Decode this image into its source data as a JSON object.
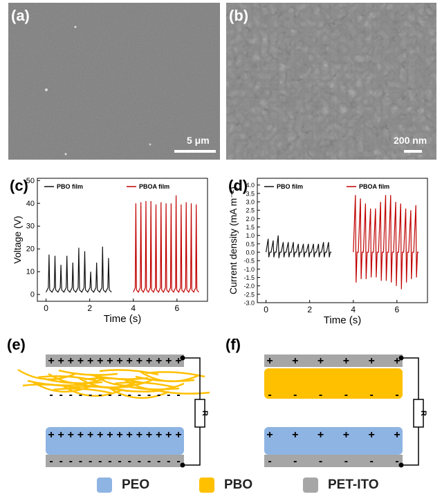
{
  "panels": {
    "a": {
      "label": "(a)",
      "scale": "5 μm"
    },
    "b": {
      "label": "(b)",
      "scale": "200 nm"
    },
    "c": {
      "label": "(c)"
    },
    "d": {
      "label": "(d)"
    },
    "e": {
      "label": "(e)"
    },
    "f": {
      "label": "(f)"
    }
  },
  "chart_data": [
    {
      "type": "line",
      "panel": "c",
      "xlabel": "Time (s)",
      "ylabel": "Voltage (V)",
      "xlim": [
        -0.4,
        7.4
      ],
      "ylim": [
        -3,
        51
      ],
      "xticks": [
        0,
        2,
        4,
        6
      ],
      "yticks": [
        0,
        10,
        20,
        30,
        40,
        50
      ],
      "legend_position": "top",
      "series": [
        {
          "name": "PBO film",
          "color": "#111111",
          "x_range": [
            0,
            3
          ],
          "baseline": 1,
          "peaks": [
            17.5,
            17,
            13,
            17,
            14,
            20.5,
            19,
            10,
            14,
            21,
            16
          ]
        },
        {
          "name": "PBOA film",
          "color": "#c00000",
          "x_range": [
            4,
            7
          ],
          "baseline": 1,
          "peaks": [
            40,
            40.5,
            41,
            41,
            39.5,
            40.5,
            40,
            40,
            43.5,
            39.5,
            40.5,
            40,
            39.5
          ]
        }
      ]
    },
    {
      "type": "line",
      "panel": "d",
      "xlabel": "Time (s)",
      "ylabel": "Current density (mA m⁻²)",
      "xlim": [
        -0.4,
        7.4
      ],
      "ylim": [
        -3.0,
        4.4
      ],
      "xticks": [
        0,
        2,
        4,
        6
      ],
      "yticks": [
        -3.0,
        -2.5,
        -2.0,
        -1.5,
        -1.0,
        -0.5,
        0.0,
        0.5,
        1.0,
        1.5,
        2.0,
        2.5,
        3.0,
        3.5,
        4.0
      ],
      "legend_position": "top",
      "series": [
        {
          "name": "PBO film",
          "color": "#111111",
          "x_range": [
            0,
            3
          ],
          "peaks": [
            0.8,
            0.7,
            1.0,
            0.6,
            0.6,
            0.6,
            0.5,
            0.5,
            0.5,
            0.5,
            0.5,
            0.6,
            0.6
          ],
          "troughs": [
            -0.3,
            -0.3,
            -0.35,
            -0.3,
            -0.3,
            -0.3,
            -0.3,
            -0.3,
            -0.3,
            -0.3,
            -0.3,
            -0.3,
            -0.3
          ]
        },
        {
          "name": "PBOA film",
          "color": "#c00000",
          "x_range": [
            4,
            7
          ],
          "peaks": [
            3.4,
            3.2,
            2.9,
            2.6,
            2.6,
            3.0,
            3.4,
            3.4,
            3.0,
            2.9,
            2.6,
            2.5,
            2.8
          ],
          "troughs": [
            -1.8,
            -1.6,
            -1.6,
            -1.5,
            -1.5,
            -1.7,
            -1.7,
            -1.8,
            -2.0,
            -2.2,
            -1.8,
            -1.6,
            -1.5
          ]
        }
      ]
    }
  ],
  "diagram_e": {
    "plus": "+",
    "minus": "-",
    "resistor": "R"
  },
  "diagram_f": {
    "plus": "+",
    "minus": "-",
    "resistor": "R"
  },
  "legend": [
    {
      "label": "PEO",
      "color": "#8eb4e3"
    },
    {
      "label": "PBO",
      "color": "#ffc000"
    },
    {
      "label": "PET-ITO",
      "color": "#a6a6a6"
    }
  ]
}
